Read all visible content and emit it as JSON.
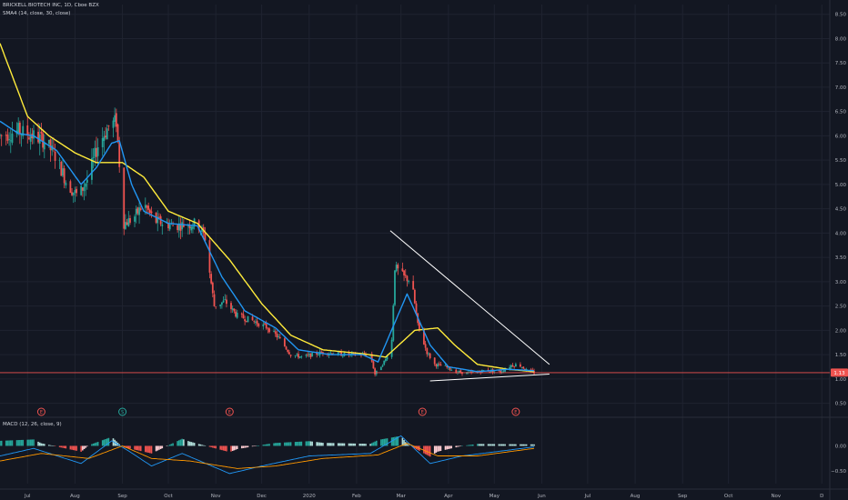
{
  "legend": {
    "symbol_line": "BRICKELL BIOTECH INC, 1D, Cboe BZX",
    "sma_line": "SMA4 (14, close, 30, close)",
    "macd_line": "MACD (12, 26, close, 9)"
  },
  "colors": {
    "background": "#131722",
    "grid": "#1f2330",
    "axis_text": "#b2b5be",
    "candle_up": "#26a69a",
    "candle_down": "#ef5350",
    "sma_fast": "#2196f3",
    "sma_slow": "#ffeb3b",
    "trendline": "#ffffff",
    "price_line": "#ef5350",
    "price_badge": "#ef5350",
    "macd": "#2196f3",
    "signal": "#ff9800",
    "hist_pos_strong": "#26a69a",
    "hist_pos_weak": "#b2dfdb",
    "hist_neg_strong": "#ef5350",
    "hist_neg_weak": "#ffcdd2"
  },
  "chart_data": {
    "type": "candlestick",
    "price_scale": {
      "ylim": [
        0.25,
        8.7
      ],
      "ticks": [
        "8.50",
        "8.00",
        "7.50",
        "7.00",
        "6.50",
        "6.00",
        "5.50",
        "5.00",
        "4.50",
        "4.00",
        "3.50",
        "3.00",
        "2.50",
        "2.00",
        "1.50",
        "1.00",
        "0.50"
      ]
    },
    "macd_scale": {
      "ylim": [
        -0.75,
        0.55
      ],
      "ticks": [
        "0.00",
        "−0.50"
      ]
    },
    "x_labels": [
      "Jul",
      "Aug",
      "Sep",
      "Oct",
      "Nov",
      "Dec",
      "2020",
      "Feb",
      "Mar",
      "Apr",
      "May",
      "Jun",
      "Jul",
      "Aug",
      "Sep",
      "Oct",
      "Nov",
      "D"
    ],
    "x_label_dates": [
      "2019-07-01",
      "2019-08-01",
      "2019-09-01",
      "2019-10-01",
      "2019-11-01",
      "2019-12-01",
      "2020-01-01",
      "2020-02-01",
      "2020-03-01",
      "2020-04-01",
      "2020-05-01",
      "2020-06-01",
      "2020-07-01",
      "2020-08-01",
      "2020-09-01",
      "2020-10-01",
      "2020-11-01",
      "2020-12-01"
    ],
    "price_anchors": [
      [
        "2019-06-13",
        6.0
      ],
      [
        "2019-06-25",
        6.1
      ],
      [
        "2019-07-05",
        6.0
      ],
      [
        "2019-07-12",
        5.9
      ],
      [
        "2019-07-20",
        5.55
      ],
      [
        "2019-07-27",
        5.0
      ],
      [
        "2019-08-03",
        4.75
      ],
      [
        "2019-08-09",
        5.1
      ],
      [
        "2019-08-16",
        5.8
      ],
      [
        "2019-08-23",
        6.2
      ],
      [
        "2019-08-28",
        6.3
      ],
      [
        "2019-08-31",
        5.0
      ],
      [
        "2019-09-02",
        4.2
      ],
      [
        "2019-09-08",
        4.3
      ],
      [
        "2019-09-15",
        4.6
      ],
      [
        "2019-09-22",
        4.25
      ],
      [
        "2019-10-05",
        4.15
      ],
      [
        "2019-10-20",
        4.2
      ],
      [
        "2019-10-25",
        3.9
      ],
      [
        "2019-10-31",
        2.5
      ],
      [
        "2019-11-07",
        2.6
      ],
      [
        "2019-11-15",
        2.3
      ],
      [
        "2019-11-25",
        2.2
      ],
      [
        "2019-12-05",
        2.05
      ],
      [
        "2019-12-12",
        1.85
      ],
      [
        "2019-12-20",
        1.5
      ],
      [
        "2019-12-28",
        1.45
      ],
      [
        "2020-01-10",
        1.55
      ],
      [
        "2020-01-25",
        1.5
      ],
      [
        "2020-02-05",
        1.5
      ],
      [
        "2020-02-10",
        1.5
      ],
      [
        "2020-02-13",
        1.1
      ],
      [
        "2020-02-20",
        1.4
      ],
      [
        "2020-02-24",
        1.8
      ],
      [
        "2020-02-26",
        3.3
      ],
      [
        "2020-03-03",
        3.1
      ],
      [
        "2020-03-08",
        3.0
      ],
      [
        "2020-03-12",
        2.1
      ],
      [
        "2020-03-18",
        1.55
      ],
      [
        "2020-03-23",
        1.3
      ],
      [
        "2020-03-30",
        1.25
      ],
      [
        "2020-04-06",
        1.15
      ],
      [
        "2020-04-15",
        1.12
      ],
      [
        "2020-04-25",
        1.18
      ],
      [
        "2020-05-05",
        1.15
      ],
      [
        "2020-05-12",
        1.28
      ],
      [
        "2020-05-17",
        1.3
      ],
      [
        "2020-05-22",
        1.18
      ],
      [
        "2020-05-27",
        1.13
      ]
    ],
    "sma14_anchors": [
      [
        "2019-06-13",
        6.3
      ],
      [
        "2019-06-25",
        6.05
      ],
      [
        "2019-07-05",
        6.0
      ],
      [
        "2019-07-20",
        5.7
      ],
      [
        "2019-08-05",
        5.0
      ],
      [
        "2019-08-15",
        5.35
      ],
      [
        "2019-08-25",
        5.85
      ],
      [
        "2019-08-30",
        5.9
      ],
      [
        "2019-09-07",
        5.0
      ],
      [
        "2019-09-15",
        4.45
      ],
      [
        "2019-10-01",
        4.2
      ],
      [
        "2019-10-20",
        4.15
      ],
      [
        "2019-11-05",
        3.1
      ],
      [
        "2019-11-20",
        2.4
      ],
      [
        "2019-12-10",
        2.05
      ],
      [
        "2019-12-25",
        1.6
      ],
      [
        "2020-01-15",
        1.5
      ],
      [
        "2020-02-05",
        1.5
      ],
      [
        "2020-02-15",
        1.35
      ],
      [
        "2020-03-05",
        2.75
      ],
      [
        "2020-03-20",
        1.7
      ],
      [
        "2020-04-01",
        1.25
      ],
      [
        "2020-04-20",
        1.15
      ],
      [
        "2020-05-10",
        1.2
      ],
      [
        "2020-05-27",
        1.17
      ]
    ],
    "sma30_anchors": [
      [
        "2019-06-13",
        7.9
      ],
      [
        "2019-07-01",
        6.4
      ],
      [
        "2019-07-15",
        6.0
      ],
      [
        "2019-08-01",
        5.65
      ],
      [
        "2019-08-15",
        5.45
      ],
      [
        "2019-09-01",
        5.45
      ],
      [
        "2019-09-15",
        5.15
      ],
      [
        "2019-10-01",
        4.45
      ],
      [
        "2019-10-20",
        4.2
      ],
      [
        "2019-11-10",
        3.45
      ],
      [
        "2019-12-01",
        2.55
      ],
      [
        "2019-12-20",
        1.9
      ],
      [
        "2020-01-10",
        1.6
      ],
      [
        "2020-02-05",
        1.52
      ],
      [
        "2020-02-20",
        1.45
      ],
      [
        "2020-03-10",
        2.0
      ],
      [
        "2020-03-25",
        2.05
      ],
      [
        "2020-04-05",
        1.7
      ],
      [
        "2020-04-20",
        1.3
      ],
      [
        "2020-05-10",
        1.2
      ],
      [
        "2020-05-27",
        1.15
      ]
    ],
    "current_price": "1.13",
    "current_price_value": 1.13,
    "trendlines": [
      {
        "from": [
          "2020-02-23",
          4.05
        ],
        "to": [
          "2020-06-06",
          1.3
        ]
      },
      {
        "from": [
          "2020-03-20",
          0.96
        ],
        "to": [
          "2020-06-06",
          1.1
        ]
      }
    ],
    "earnings_markers": [
      {
        "date": "2019-07-10",
        "label": "E",
        "color": "#ef5350"
      },
      {
        "date": "2019-09-01",
        "label": "S",
        "color": "#26a69a"
      },
      {
        "date": "2019-11-10",
        "label": "E",
        "color": "#ef5350"
      },
      {
        "date": "2020-03-15",
        "label": "E",
        "color": "#ef5350"
      },
      {
        "date": "2020-05-15",
        "label": "E",
        "color": "#ef5350"
      }
    ],
    "macd_anchors": [
      [
        "2019-06-13",
        -0.2
      ],
      [
        "2019-07-05",
        -0.05
      ],
      [
        "2019-08-05",
        -0.35
      ],
      [
        "2019-08-25",
        0.1
      ],
      [
        "2019-09-05",
        -0.1
      ],
      [
        "2019-09-20",
        -0.4
      ],
      [
        "2019-10-10",
        -0.15
      ],
      [
        "2019-11-10",
        -0.55
      ],
      [
        "2019-12-01",
        -0.4
      ],
      [
        "2020-01-01",
        -0.2
      ],
      [
        "2020-02-10",
        -0.15
      ],
      [
        "2020-03-01",
        0.2
      ],
      [
        "2020-03-20",
        -0.35
      ],
      [
        "2020-04-10",
        -0.2
      ],
      [
        "2020-05-27",
        -0.02
      ]
    ],
    "signal_anchors": [
      [
        "2019-06-13",
        -0.3
      ],
      [
        "2019-07-10",
        -0.15
      ],
      [
        "2019-08-10",
        -0.25
      ],
      [
        "2019-09-01",
        0.0
      ],
      [
        "2019-09-20",
        -0.25
      ],
      [
        "2019-10-15",
        -0.3
      ],
      [
        "2019-11-15",
        -0.45
      ],
      [
        "2019-12-10",
        -0.4
      ],
      [
        "2020-01-10",
        -0.25
      ],
      [
        "2020-02-15",
        -0.18
      ],
      [
        "2020-03-05",
        0.05
      ],
      [
        "2020-03-25",
        -0.2
      ],
      [
        "2020-04-20",
        -0.2
      ],
      [
        "2020-05-27",
        -0.05
      ]
    ]
  }
}
